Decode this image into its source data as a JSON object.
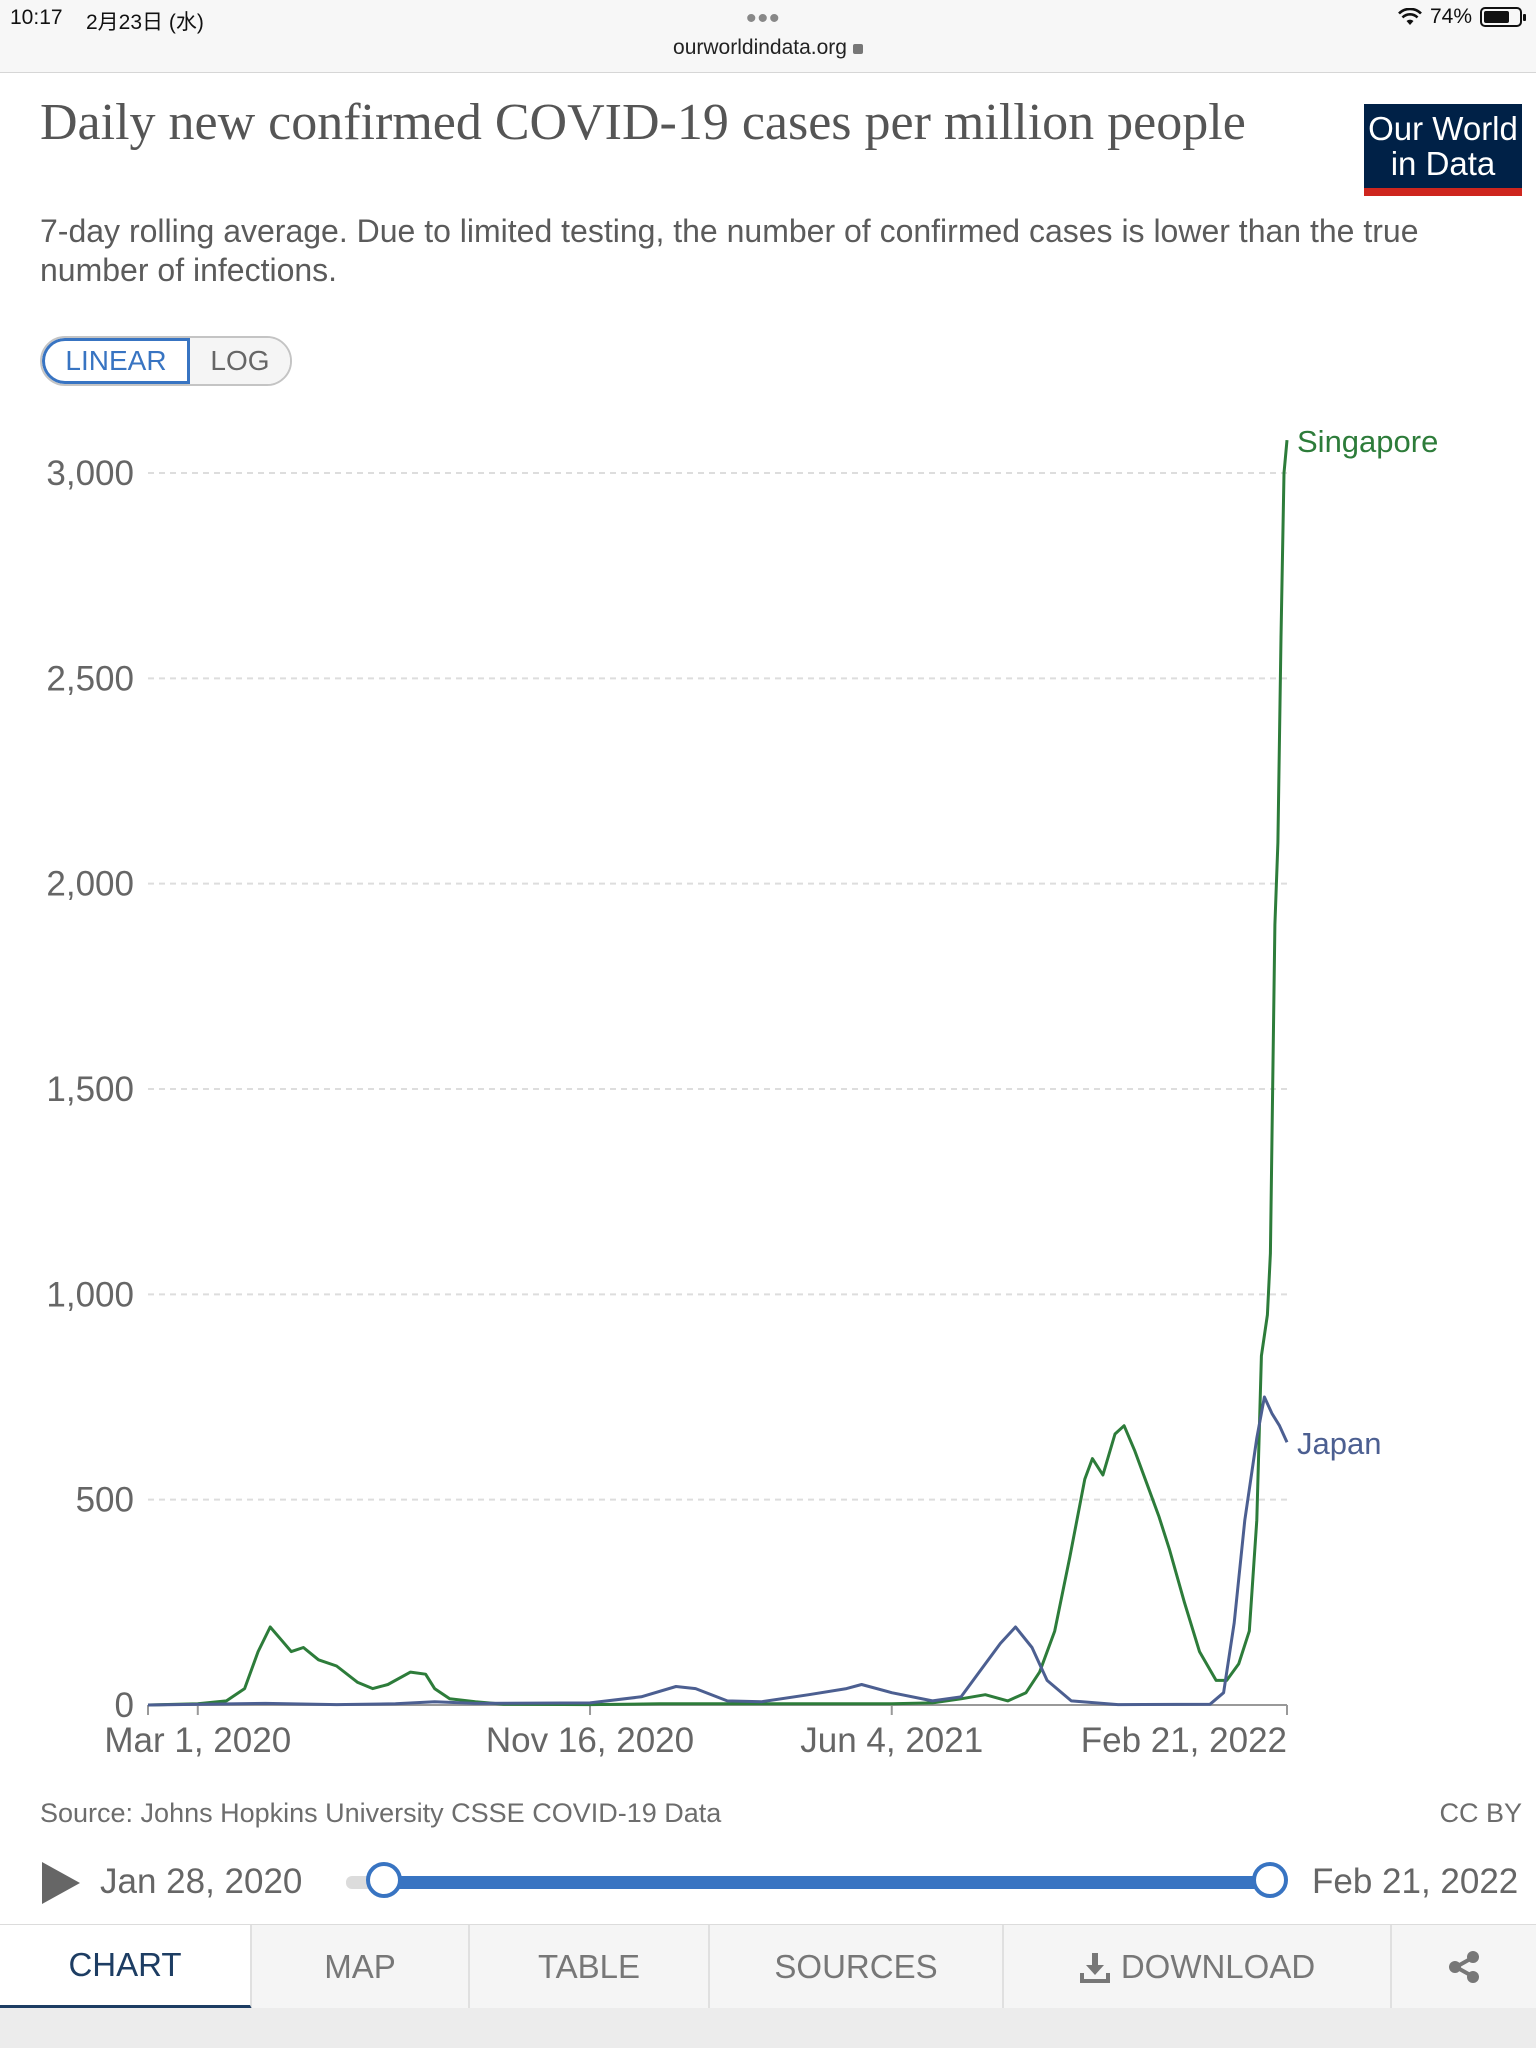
{
  "status_bar": {
    "time": "10:17",
    "date": "2月23日 (水)",
    "url": "ourworldindata.org",
    "battery": "74%",
    "battery_level": 0.74
  },
  "header": {
    "title": "Daily new confirmed COVID-19 cases per million people",
    "subtitle": "7-day rolling average. Due to limited testing, the number of confirmed cases is lower than the true number of infections.",
    "logo_line1": "Our World",
    "logo_line2": "in Data"
  },
  "scale_toggle": {
    "linear": "LINEAR",
    "log": "LOG",
    "selected": "LINEAR"
  },
  "chart_data": {
    "type": "line",
    "title": "Daily new confirmed COVID-19 cases per million people",
    "xlabel": "",
    "ylabel": "",
    "ylim": [
      0,
      3000
    ],
    "yticks": [
      0,
      500,
      1000,
      1500,
      2000,
      2500,
      3000
    ],
    "ytick_labels": [
      "0",
      "500",
      "1,000",
      "1,500",
      "2,000",
      "2,500",
      "3,000"
    ],
    "xrange": [
      "2020-01-28",
      "2022-02-21"
    ],
    "xtick_labels": [
      "Mar 1, 2020",
      "Nov 16, 2020",
      "Jun 4, 2021",
      "Feb 21, 2022"
    ],
    "xtick_dates": [
      "2020-03-01",
      "2020-11-16",
      "2021-06-04",
      "2022-02-21"
    ],
    "grid": "horizontal dashed",
    "legend": "inline labels at line ends",
    "series": [
      {
        "name": "Singapore",
        "color": "#2d7c3a",
        "points": [
          [
            "2020-01-28",
            0
          ],
          [
            "2020-03-01",
            3
          ],
          [
            "2020-03-20",
            10
          ],
          [
            "2020-04-01",
            40
          ],
          [
            "2020-04-10",
            130
          ],
          [
            "2020-04-18",
            190
          ],
          [
            "2020-04-25",
            160
          ],
          [
            "2020-05-02",
            130
          ],
          [
            "2020-05-10",
            140
          ],
          [
            "2020-05-20",
            110
          ],
          [
            "2020-06-01",
            95
          ],
          [
            "2020-06-15",
            55
          ],
          [
            "2020-06-25",
            40
          ],
          [
            "2020-07-05",
            50
          ],
          [
            "2020-07-20",
            80
          ],
          [
            "2020-07-30",
            75
          ],
          [
            "2020-08-05",
            40
          ],
          [
            "2020-08-15",
            15
          ],
          [
            "2020-09-01",
            8
          ],
          [
            "2020-09-20",
            2
          ],
          [
            "2020-11-16",
            1
          ],
          [
            "2021-01-01",
            3
          ],
          [
            "2021-03-01",
            3
          ],
          [
            "2021-06-04",
            3
          ],
          [
            "2021-07-01",
            5
          ],
          [
            "2021-07-20",
            15
          ],
          [
            "2021-08-05",
            25
          ],
          [
            "2021-08-20",
            10
          ],
          [
            "2021-09-01",
            30
          ],
          [
            "2021-09-10",
            80
          ],
          [
            "2021-09-20",
            180
          ],
          [
            "2021-09-30",
            360
          ],
          [
            "2021-10-10",
            550
          ],
          [
            "2021-10-15",
            600
          ],
          [
            "2021-10-22",
            560
          ],
          [
            "2021-10-30",
            660
          ],
          [
            "2021-11-05",
            680
          ],
          [
            "2021-11-12",
            620
          ],
          [
            "2021-11-20",
            540
          ],
          [
            "2021-11-28",
            460
          ],
          [
            "2021-12-05",
            380
          ],
          [
            "2021-12-15",
            250
          ],
          [
            "2021-12-25",
            130
          ],
          [
            "2022-01-05",
            60
          ],
          [
            "2022-01-12",
            60
          ],
          [
            "2022-01-20",
            100
          ],
          [
            "2022-01-27",
            180
          ],
          [
            "2022-02-01",
            450
          ],
          [
            "2022-02-04",
            850
          ],
          [
            "2022-02-08",
            950
          ],
          [
            "2022-02-10",
            1100
          ],
          [
            "2022-02-13",
            1900
          ],
          [
            "2022-02-15",
            2100
          ],
          [
            "2022-02-17",
            2600
          ],
          [
            "2022-02-19",
            3000
          ],
          [
            "2022-02-21",
            3080
          ]
        ]
      },
      {
        "name": "Japan",
        "color": "#4c5f91",
        "points": [
          [
            "2020-01-28",
            0
          ],
          [
            "2020-04-15",
            4
          ],
          [
            "2020-06-01",
            1
          ],
          [
            "2020-07-10",
            3
          ],
          [
            "2020-08-05",
            8
          ],
          [
            "2020-09-01",
            4
          ],
          [
            "2020-11-16",
            5
          ],
          [
            "2020-12-20",
            20
          ],
          [
            "2021-01-12",
            45
          ],
          [
            "2021-01-25",
            40
          ],
          [
            "2021-02-15",
            10
          ],
          [
            "2021-03-10",
            8
          ],
          [
            "2021-04-10",
            25
          ],
          [
            "2021-05-05",
            40
          ],
          [
            "2021-05-15",
            50
          ],
          [
            "2021-06-04",
            30
          ],
          [
            "2021-07-01",
            10
          ],
          [
            "2021-07-20",
            20
          ],
          [
            "2021-08-01",
            80
          ],
          [
            "2021-08-15",
            150
          ],
          [
            "2021-08-25",
            190
          ],
          [
            "2021-09-05",
            140
          ],
          [
            "2021-09-15",
            60
          ],
          [
            "2021-10-01",
            10
          ],
          [
            "2021-11-01",
            1
          ],
          [
            "2022-01-01",
            2
          ],
          [
            "2022-01-10",
            30
          ],
          [
            "2022-01-17",
            200
          ],
          [
            "2022-01-24",
            450
          ],
          [
            "2022-02-01",
            650
          ],
          [
            "2022-02-06",
            750
          ],
          [
            "2022-02-11",
            710
          ],
          [
            "2022-02-16",
            680
          ],
          [
            "2022-02-21",
            640
          ]
        ]
      }
    ]
  },
  "footer": {
    "source": "Source: Johns Hopkins University CSSE COVID-19 Data",
    "license": "CC BY"
  },
  "timeline": {
    "start": "Jan 28, 2020",
    "end": "Feb 21, 2022"
  },
  "tabs": [
    {
      "label": "CHART",
      "active": true
    },
    {
      "label": "MAP",
      "active": false
    },
    {
      "label": "TABLE",
      "active": false
    },
    {
      "label": "SOURCES",
      "active": false
    },
    {
      "label": "DOWNLOAD",
      "active": false
    }
  ]
}
